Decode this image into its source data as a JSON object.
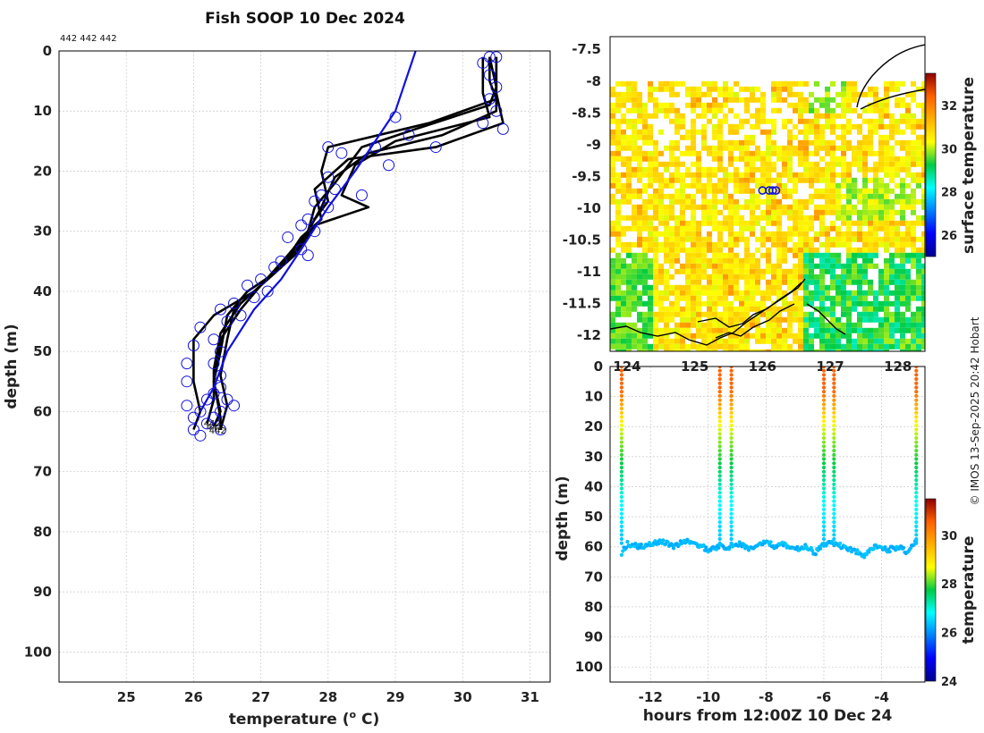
{
  "page": {
    "title": "Fish SOOP 10 Dec 2024",
    "profile_ids_label": "442 442 442",
    "credit": "© IMOS 13-Sep-2025 20:42 Hobart"
  },
  "colors": {
    "profile_line": "#000000",
    "marker": "#1010e0",
    "reference_line": "#1010e0",
    "grid": "#c8c8c8",
    "coast": "#000000"
  },
  "chart_data": [
    {
      "id": "profiles",
      "type": "line",
      "title": "Fish SOOP 10 Dec 2024",
      "xlabel": "temperature (",
      "xlabel_sup": "o",
      "xlabel_suffix": " C)",
      "ylabel": "depth (m)",
      "xlim": [
        24.0,
        31.3
      ],
      "ylim": [
        0,
        105
      ],
      "xticks": [
        25,
        26,
        27,
        28,
        29,
        30,
        31
      ],
      "yticks": [
        0,
        10,
        20,
        30,
        40,
        50,
        60,
        70,
        80,
        90,
        100
      ],
      "end_labels": [
        "442",
        "442",
        "442"
      ],
      "series": [
        {
          "name": "profile-1",
          "color": "#000000",
          "points": [
            [
              30.4,
              1
            ],
            [
              30.4,
              5
            ],
            [
              30.5,
              8
            ],
            [
              29.5,
              12
            ],
            [
              28.0,
              16
            ],
            [
              27.9,
              20
            ],
            [
              28.0,
              25
            ],
            [
              27.8,
              28
            ],
            [
              27.6,
              32
            ],
            [
              27.2,
              37
            ],
            [
              26.8,
              40
            ],
            [
              26.5,
              44
            ],
            [
              26.4,
              50
            ],
            [
              26.3,
              55
            ],
            [
              26.4,
              60
            ],
            [
              26.3,
              62.5
            ]
          ]
        },
        {
          "name": "profile-2",
          "color": "#000000",
          "points": [
            [
              30.5,
              1
            ],
            [
              30.5,
              6
            ],
            [
              30.5,
              10
            ],
            [
              29.7,
              14
            ],
            [
              28.6,
              17
            ],
            [
              28.1,
              21
            ],
            [
              27.9,
              26
            ],
            [
              27.7,
              30
            ],
            [
              27.4,
              35
            ],
            [
              27.0,
              39
            ],
            [
              26.6,
              43
            ],
            [
              26.5,
              48
            ],
            [
              26.4,
              54
            ],
            [
              26.5,
              59
            ],
            [
              26.4,
              63
            ]
          ]
        },
        {
          "name": "profile-3",
          "color": "#000000",
          "points": [
            [
              30.3,
              1
            ],
            [
              30.3,
              7
            ],
            [
              30.4,
              11
            ],
            [
              29.0,
              15
            ],
            [
              28.4,
              19
            ],
            [
              28.2,
              24
            ],
            [
              28.6,
              26
            ],
            [
              27.8,
              29
            ],
            [
              27.5,
              34
            ],
            [
              27.1,
              38
            ],
            [
              26.7,
              42
            ],
            [
              26.4,
              47
            ],
            [
              26.3,
              53
            ],
            [
              26.3,
              58
            ],
            [
              26.2,
              62
            ]
          ]
        },
        {
          "name": "profile-4",
          "color": "#000000",
          "points": [
            [
              30.5,
              1
            ],
            [
              30.5,
              7
            ],
            [
              30.6,
              12
            ],
            [
              29.6,
              16
            ],
            [
              28.3,
              18
            ],
            [
              27.8,
              23
            ],
            [
              27.9,
              28
            ],
            [
              27.6,
              31
            ],
            [
              27.3,
              36
            ],
            [
              26.9,
              40
            ],
            [
              26.3,
              44
            ],
            [
              26.0,
              48
            ],
            [
              26.0,
              55
            ],
            [
              26.1,
              60
            ],
            [
              26.0,
              63
            ]
          ]
        },
        {
          "name": "profile-5",
          "color": "#000000",
          "points": [
            [
              30.4,
              1
            ],
            [
              30.5,
              6
            ],
            [
              30.4,
              9
            ],
            [
              29.3,
              13
            ],
            [
              28.5,
              16
            ],
            [
              28.1,
              22
            ],
            [
              27.8,
              26
            ],
            [
              27.7,
              30
            ],
            [
              27.4,
              34
            ],
            [
              27.0,
              39
            ],
            [
              26.7,
              43
            ],
            [
              26.4,
              48
            ],
            [
              26.3,
              55
            ],
            [
              26.4,
              61
            ],
            [
              26.4,
              63
            ]
          ]
        },
        {
          "name": "reference",
          "color": "#1010e0",
          "points": [
            [
              29.3,
              0
            ],
            [
              29.0,
              10
            ],
            [
              28.7,
              15
            ],
            [
              28.4,
              20
            ],
            [
              28.0,
              26
            ],
            [
              27.6,
              33
            ],
            [
              27.3,
              38
            ],
            [
              26.9,
              43
            ],
            [
              26.5,
              50
            ],
            [
              26.3,
              56
            ],
            [
              26.1,
              60
            ]
          ]
        }
      ],
      "markers": [
        [
          30.3,
          2
        ],
        [
          30.4,
          4
        ],
        [
          30.5,
          6
        ],
        [
          30.4,
          8
        ],
        [
          30.5,
          10
        ],
        [
          30.3,
          12
        ],
        [
          30.6,
          13
        ],
        [
          30.4,
          1
        ],
        [
          30.5,
          1
        ],
        [
          29.0,
          11
        ],
        [
          29.2,
          14
        ],
        [
          28.7,
          16
        ],
        [
          29.6,
          16
        ],
        [
          28.9,
          19
        ],
        [
          28.0,
          16
        ],
        [
          28.2,
          17
        ],
        [
          28.0,
          21
        ],
        [
          28.1,
          23
        ],
        [
          27.9,
          24
        ],
        [
          28.5,
          24
        ],
        [
          27.8,
          25
        ],
        [
          28.0,
          26
        ],
        [
          27.7,
          28
        ],
        [
          27.6,
          29
        ],
        [
          27.8,
          30
        ],
        [
          27.4,
          31
        ],
        [
          27.6,
          33
        ],
        [
          27.7,
          34
        ],
        [
          27.3,
          35
        ],
        [
          27.2,
          36
        ],
        [
          27.0,
          38
        ],
        [
          26.8,
          39
        ],
        [
          27.1,
          40
        ],
        [
          26.9,
          41
        ],
        [
          26.6,
          42
        ],
        [
          26.4,
          43
        ],
        [
          26.7,
          44
        ],
        [
          26.5,
          45
        ],
        [
          26.1,
          46
        ],
        [
          26.3,
          48
        ],
        [
          26.0,
          49
        ],
        [
          26.4,
          50
        ],
        [
          26.3,
          52
        ],
        [
          25.9,
          52
        ],
        [
          26.4,
          54
        ],
        [
          25.9,
          55
        ],
        [
          26.4,
          56
        ],
        [
          26.3,
          57
        ],
        [
          26.5,
          58
        ],
        [
          26.2,
          58
        ],
        [
          26.6,
          59
        ],
        [
          25.9,
          59
        ],
        [
          26.4,
          60
        ],
        [
          26.1,
          60
        ],
        [
          26.3,
          61
        ],
        [
          26.0,
          61
        ],
        [
          26.2,
          62
        ],
        [
          26.4,
          63
        ],
        [
          26.0,
          63
        ],
        [
          26.1,
          64
        ]
      ]
    },
    {
      "id": "map",
      "type": "heatmap",
      "colorbar_label": "surface temperature",
      "colorbar_ticks": [
        26,
        28,
        30,
        32
      ],
      "colorbar_range": [
        25,
        33.5
      ],
      "xlim": [
        123.75,
        128.4
      ],
      "ylim": [
        -12.25,
        -7.3
      ],
      "xticks": [
        124,
        125,
        126,
        127,
        128
      ],
      "yticks": [
        -7.5,
        -8,
        -8.5,
        -9,
        -9.5,
        -10,
        -10.5,
        -11,
        -11.5,
        -12
      ],
      "ytick_labels": [
        "-7.5",
        "-8",
        "-8.5",
        "-9",
        "-9.5",
        "-10",
        "-10.5",
        "-11",
        "-11.5",
        "-12"
      ],
      "data_bounds": {
        "lon": [
          123.75,
          128.4
        ],
        "lat": [
          -12.25,
          -8.0
        ]
      },
      "track_points": [
        [
          126.0,
          -9.72
        ],
        [
          126.1,
          -9.72
        ],
        [
          126.15,
          -9.72
        ],
        [
          126.2,
          -9.72
        ]
      ]
    },
    {
      "id": "timeseries",
      "type": "scatter",
      "xlabel": "hours from 12:00Z 10 Dec 24",
      "ylabel": "depth (m)",
      "colorbar_label": "temperature",
      "colorbar_ticks": [
        24,
        26,
        28,
        30
      ],
      "colorbar_range": [
        24,
        31.5
      ],
      "xlim": [
        -13.4,
        -2.5
      ],
      "ylim": [
        0,
        105
      ],
      "xticks": [
        -12,
        -10,
        -8,
        -6,
        -4
      ],
      "yticks": [
        0,
        10,
        20,
        30,
        40,
        50,
        60,
        70,
        80,
        90,
        100
      ],
      "casts_x": [
        -13.0,
        -9.6,
        -9.2,
        -6.0,
        -5.65,
        -2.8
      ],
      "bottom_depth_anchors": [
        [
          -13.0,
          62
        ],
        [
          -12.8,
          59
        ],
        [
          -12.4,
          60
        ],
        [
          -12.0,
          59
        ],
        [
          -11.6,
          58
        ],
        [
          -11.2,
          60
        ],
        [
          -10.8,
          58
        ],
        [
          -10.4,
          59
        ],
        [
          -10.0,
          61
        ],
        [
          -9.6,
          60
        ],
        [
          -9.2,
          60
        ],
        [
          -8.9,
          59
        ],
        [
          -8.6,
          61
        ],
        [
          -8.3,
          60
        ],
        [
          -8.0,
          58
        ],
        [
          -7.7,
          60
        ],
        [
          -7.4,
          59
        ],
        [
          -7.0,
          61
        ],
        [
          -6.6,
          60
        ],
        [
          -6.3,
          62
        ],
        [
          -6.0,
          59
        ],
        [
          -5.65,
          59
        ],
        [
          -5.3,
          60
        ],
        [
          -5.0,
          61
        ],
        [
          -4.6,
          63
        ],
        [
          -4.2,
          60
        ],
        [
          -3.8,
          61
        ],
        [
          -3.4,
          60
        ],
        [
          -3.1,
          62
        ],
        [
          -2.8,
          58
        ]
      ]
    }
  ]
}
